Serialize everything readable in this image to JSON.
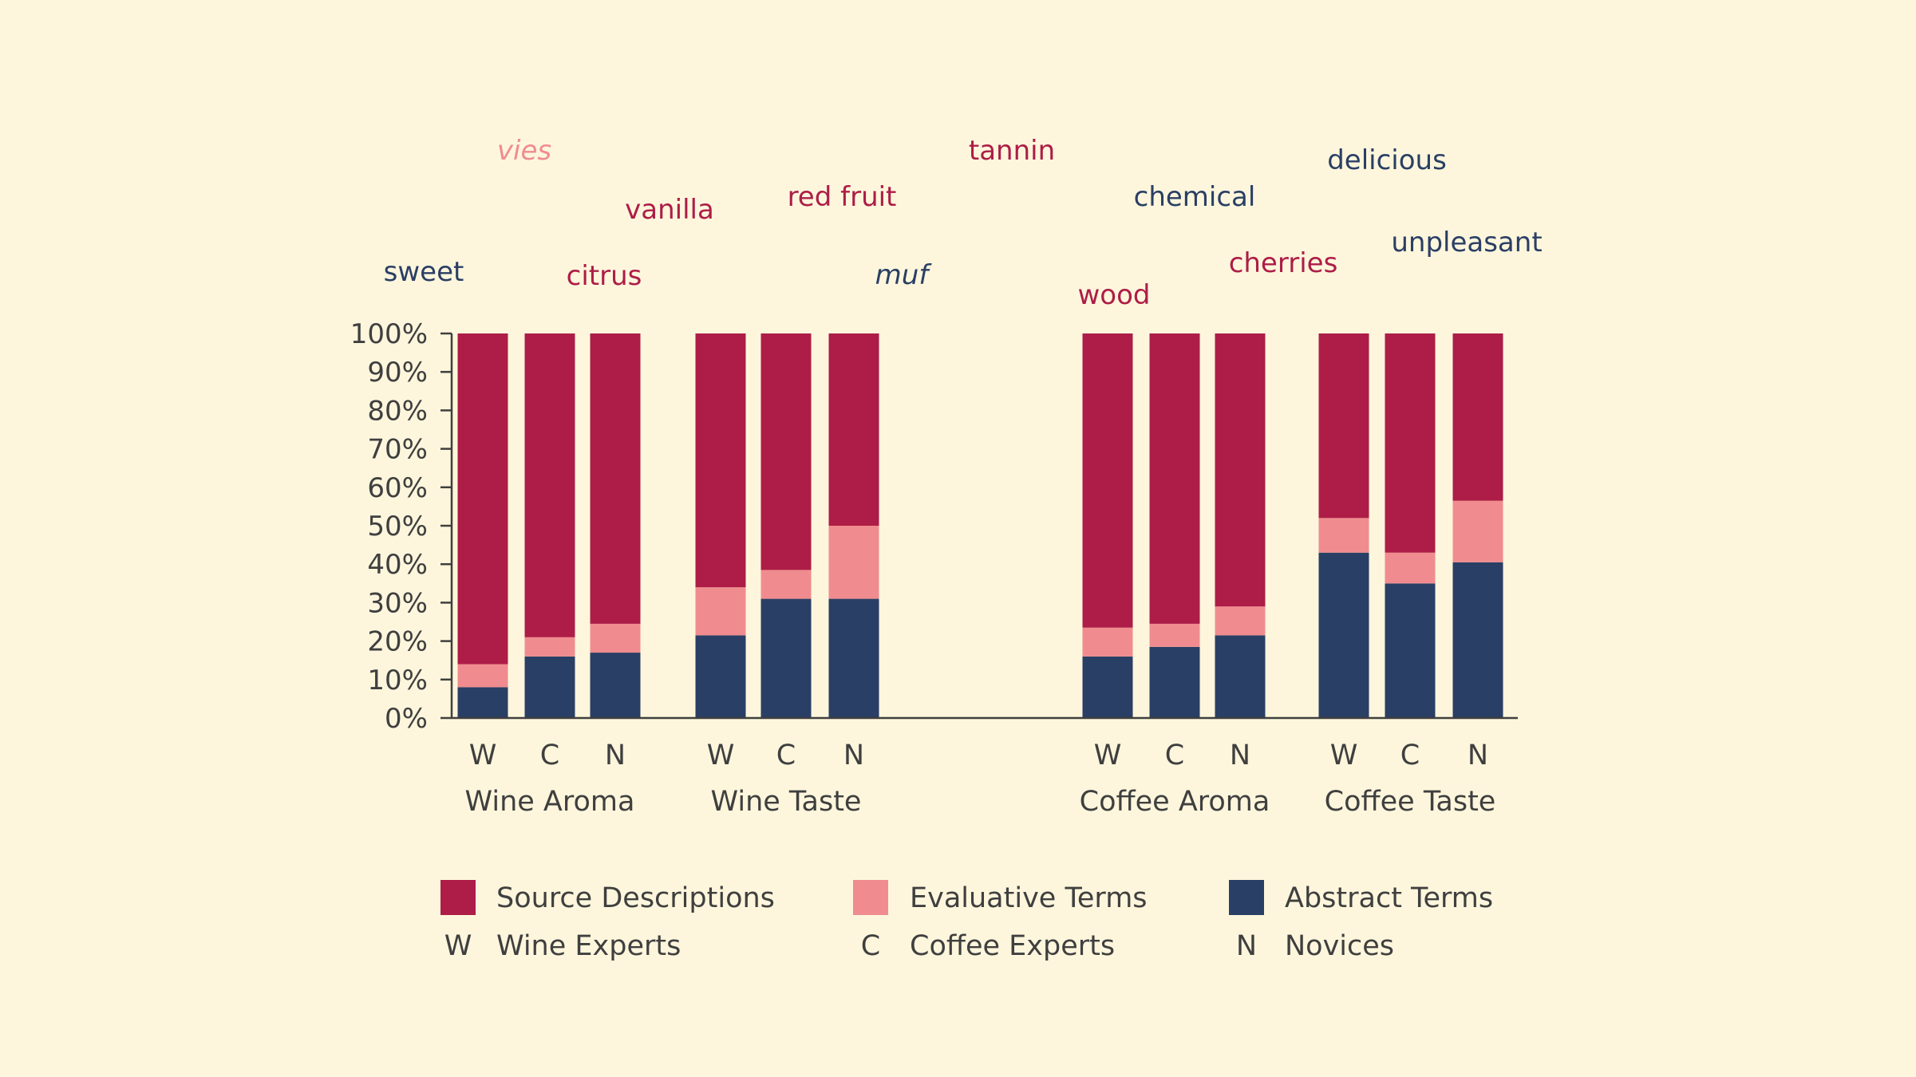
{
  "chart_data": {
    "type": "bar",
    "stacked": true,
    "ylim": [
      0,
      100
    ],
    "yticks": [
      "0%",
      "10%",
      "20%",
      "30%",
      "40%",
      "50%",
      "60%",
      "70%",
      "80%",
      "90%",
      "100%"
    ],
    "groups": [
      {
        "label": "Wine Aroma",
        "categories": [
          "W",
          "C",
          "N"
        ]
      },
      {
        "label": "Wine Taste",
        "categories": [
          "W",
          "C",
          "N"
        ]
      },
      {
        "label": "Coffee Aroma",
        "categories": [
          "W",
          "C",
          "N"
        ]
      },
      {
        "label": "Coffee Taste",
        "categories": [
          "W",
          "C",
          "N"
        ]
      }
    ],
    "series": [
      {
        "name": "Abstract Terms",
        "color": "#2a3f65",
        "values": [
          [
            8,
            16,
            17
          ],
          [
            21.5,
            31,
            31
          ],
          [
            16,
            18.5,
            21.5
          ],
          [
            43,
            35,
            40.5
          ]
        ]
      },
      {
        "name": "Evaluative Terms",
        "color": "#f08c8f",
        "values": [
          [
            6,
            5,
            7.5
          ],
          [
            12.5,
            7.5,
            19
          ],
          [
            7.5,
            6,
            7.5
          ],
          [
            9,
            8,
            16
          ]
        ]
      },
      {
        "name": "Source Descriptions",
        "color": "#ad1d47",
        "values": [
          [
            86,
            79,
            75.5
          ],
          [
            66,
            61.5,
            50
          ],
          [
            76.5,
            75.5,
            71
          ],
          [
            48,
            57,
            43.5
          ]
        ]
      }
    ],
    "word_annotations": [
      {
        "text": "vies",
        "color": "#f08c8f",
        "italic": true
      },
      {
        "text": "tannin",
        "color": "#ad1d47",
        "italic": false
      },
      {
        "text": "delicious",
        "color": "#2a3f65",
        "italic": false
      },
      {
        "text": "vanilla",
        "color": "#ad1d47",
        "italic": false
      },
      {
        "text": "red fruit",
        "color": "#ad1d47",
        "italic": false
      },
      {
        "text": "chemical",
        "color": "#2a3f65",
        "italic": false
      },
      {
        "text": "unpleasant",
        "color": "#2a3f65",
        "italic": false
      },
      {
        "text": "sweet",
        "color": "#2a3f65",
        "italic": false
      },
      {
        "text": "citrus",
        "color": "#ad1d47",
        "italic": false
      },
      {
        "text": "muf",
        "color": "#2a3f65",
        "italic": true
      },
      {
        "text": "cherries",
        "color": "#ad1d47",
        "italic": false
      },
      {
        "text": "wood",
        "color": "#ad1d47",
        "italic": false
      }
    ],
    "legend": [
      {
        "swatch_color": "#ad1d47",
        "label": "Source Descriptions"
      },
      {
        "swatch_color": "#f08c8f",
        "label": "Evaluative Terms"
      },
      {
        "swatch_color": "#2a3f65",
        "label": "Abstract Terms"
      },
      {
        "key": "W",
        "label": "Wine Experts"
      },
      {
        "key": "C",
        "label": "Coffee Experts"
      },
      {
        "key": "N",
        "label": "Novices"
      }
    ]
  }
}
